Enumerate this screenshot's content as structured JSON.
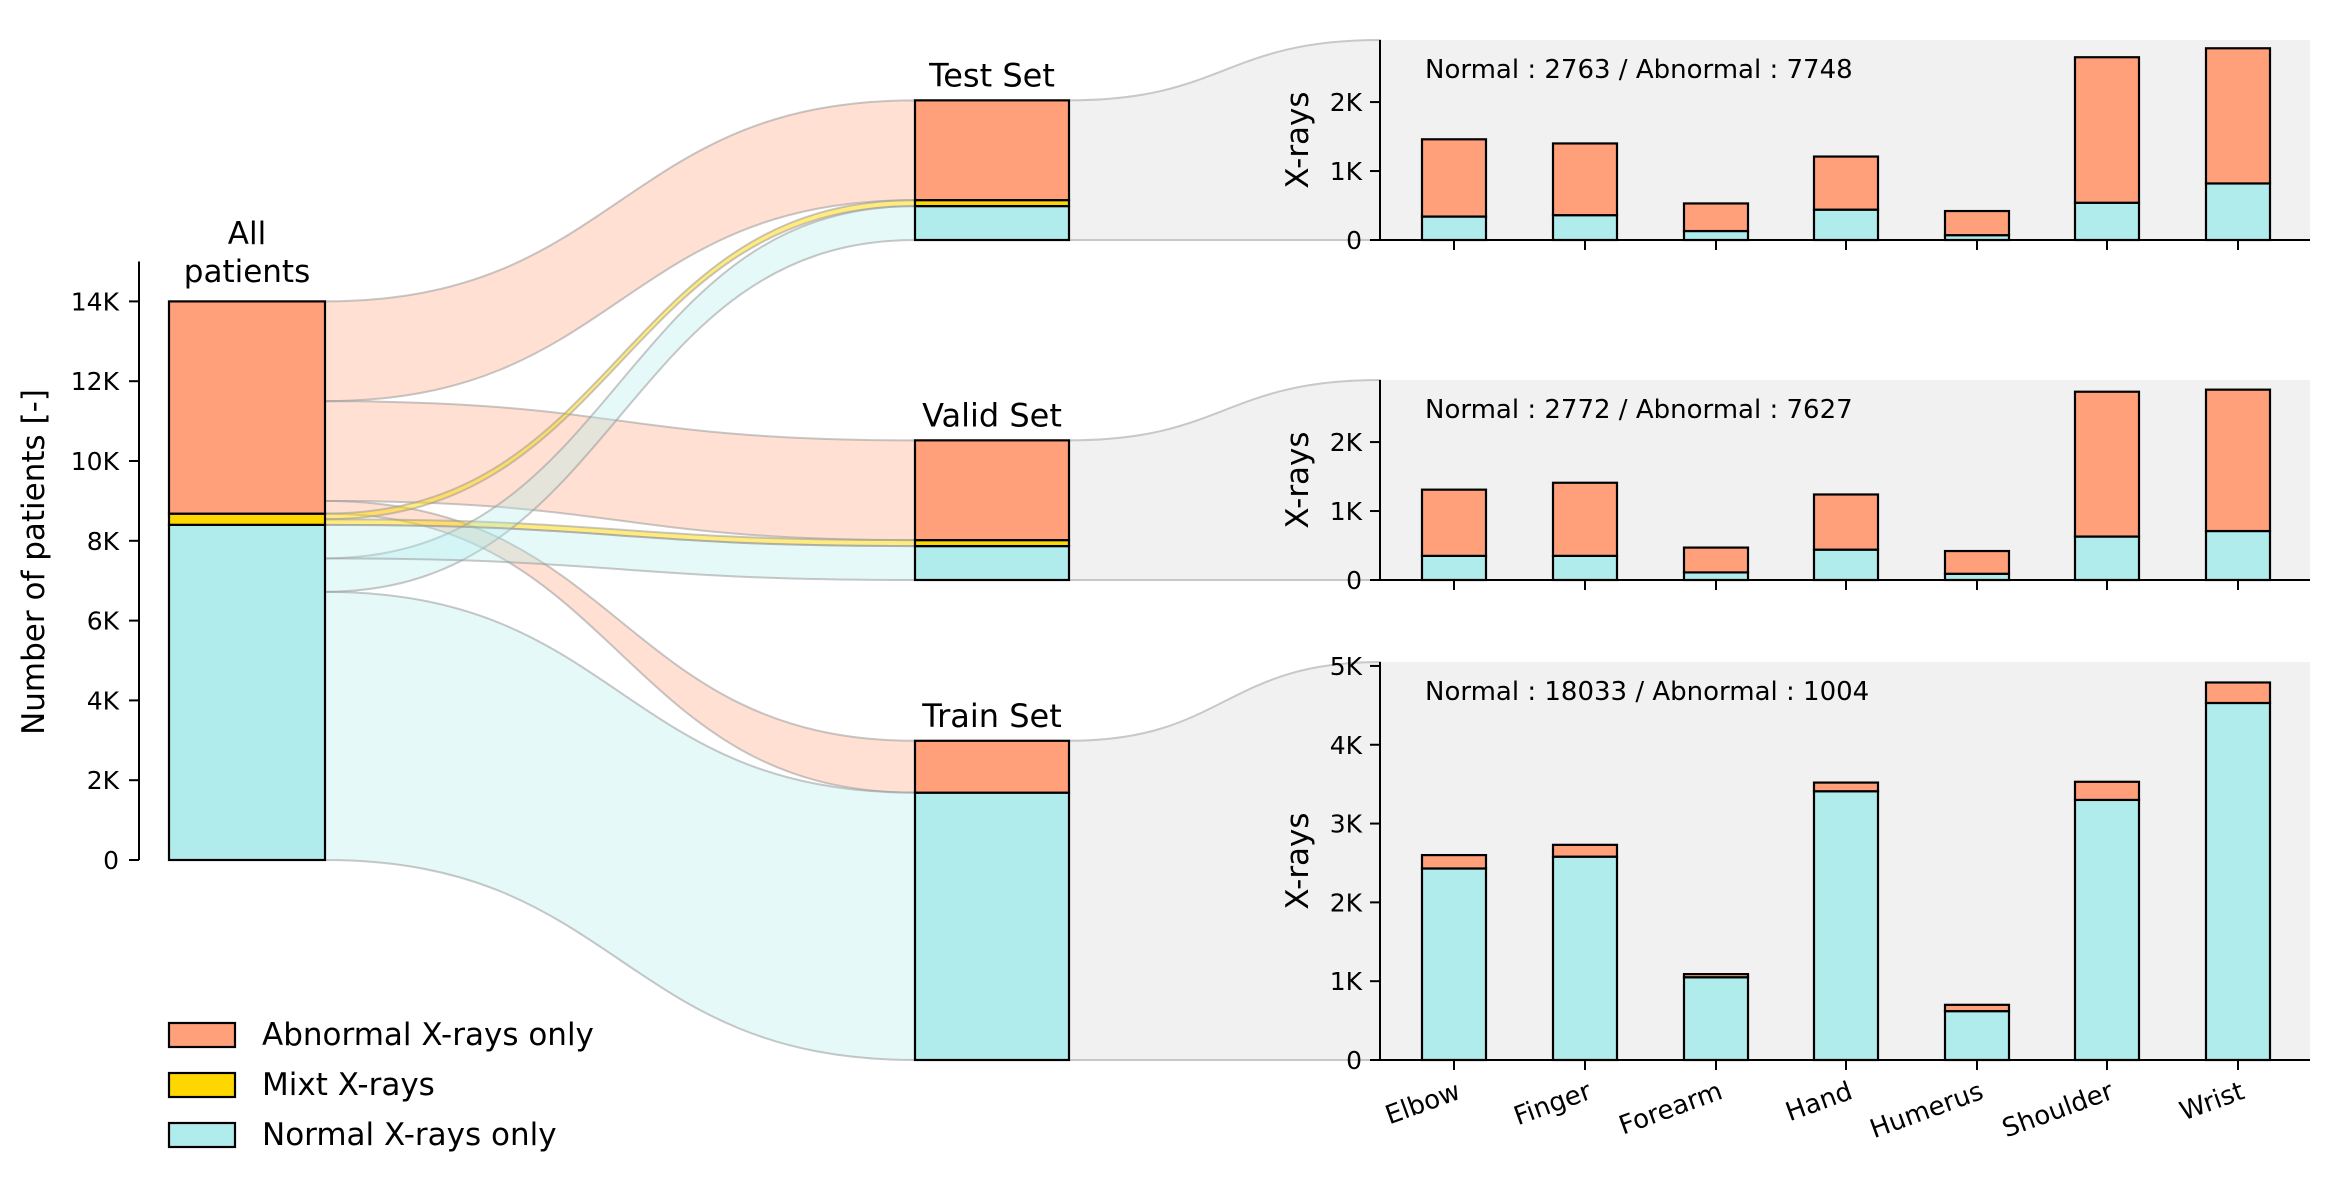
{
  "colors": {
    "abnormal": "#ffa07a",
    "mixt": "#ffd700",
    "normal": "#b0ecec",
    "panel_bg": "#f1f1f1",
    "flow_normal": "#b0ecec",
    "flow_abnormal": "#ffa07a",
    "flow_mixt": "#ffd700"
  },
  "chart_data": [
    {
      "type": "bar",
      "id": "all-patients",
      "title": "All\npatients",
      "ylabel": "Number of patients [-]",
      "ylim": [
        0,
        15000
      ],
      "yticks": [
        0,
        2000,
        4000,
        6000,
        8000,
        10000,
        12000,
        14000
      ],
      "ytick_labels": [
        "0",
        "2K",
        "4K",
        "6K",
        "8K",
        "10K",
        "12K",
        "14K"
      ],
      "stack": {
        "normal": 8400,
        "mixt": 280,
        "abnormal": 5320
      }
    },
    {
      "type": "bar",
      "id": "sets",
      "ylim": [
        0,
        15000
      ],
      "sets": [
        {
          "name": "Test Set",
          "normal": 850,
          "mixt": 150,
          "abnormal": 2500
        },
        {
          "name": "Valid Set",
          "normal": 850,
          "mixt": 150,
          "abnormal": 2500
        },
        {
          "name": "Train Set",
          "normal": 6700,
          "mixt": 0,
          "abnormal": 1300
        }
      ]
    },
    {
      "type": "bar",
      "id": "test-xrays",
      "annotation": "Normal : 2763 / Abnormal : 7748",
      "ylabel": "X-rays",
      "ylim": [
        0,
        2900
      ],
      "yticks": [
        0,
        1000,
        2000
      ],
      "ytick_labels": [
        "0",
        "1K",
        "2K"
      ],
      "categories": [
        "Elbow",
        "Finger",
        "Forearm",
        "Hand",
        "Humerus",
        "Shoulder",
        "Wrist"
      ],
      "series": [
        {
          "name": "Normal X-rays only",
          "values": [
            340,
            360,
            130,
            440,
            70,
            540,
            820
          ]
        },
        {
          "name": "Abnormal X-rays only",
          "values": [
            1120,
            1040,
            400,
            770,
            350,
            2110,
            1960
          ]
        }
      ]
    },
    {
      "type": "bar",
      "id": "valid-xrays",
      "annotation": "Normal : 2772 / Abnormal : 7627",
      "ylabel": "X-rays",
      "ylim": [
        0,
        2900
      ],
      "yticks": [
        0,
        1000,
        2000
      ],
      "ytick_labels": [
        "0",
        "1K",
        "2K"
      ],
      "categories": [
        "Elbow",
        "Finger",
        "Forearm",
        "Hand",
        "Humerus",
        "Shoulder",
        "Wrist"
      ],
      "series": [
        {
          "name": "Normal X-rays only",
          "values": [
            350,
            350,
            110,
            440,
            90,
            630,
            710
          ]
        },
        {
          "name": "Abnormal X-rays only",
          "values": [
            960,
            1060,
            360,
            800,
            330,
            2100,
            2050
          ]
        }
      ]
    },
    {
      "type": "bar",
      "id": "train-xrays",
      "annotation": "Normal : 18033 / Abnormal : 1004",
      "ylabel": "X-rays",
      "ylim": [
        0,
        5050
      ],
      "yticks": [
        0,
        1000,
        2000,
        3000,
        4000,
        5000
      ],
      "ytick_labels": [
        "0",
        "1K",
        "2K",
        "3K",
        "4K",
        "5K"
      ],
      "categories": [
        "Elbow",
        "Finger",
        "Forearm",
        "Hand",
        "Humerus",
        "Shoulder",
        "Wrist"
      ],
      "series": [
        {
          "name": "Normal X-rays only",
          "values": [
            2430,
            2580,
            1050,
            3410,
            620,
            3300,
            4530
          ]
        },
        {
          "name": "Abnormal X-rays only",
          "values": [
            170,
            150,
            40,
            110,
            80,
            230,
            260
          ]
        }
      ]
    }
  ],
  "legend": {
    "placement": "bottom-left",
    "entries": [
      {
        "label": "Abnormal X-rays only",
        "color_key": "abnormal"
      },
      {
        "label": "Mixt X-rays",
        "color_key": "mixt"
      },
      {
        "label": "Normal X-rays only",
        "color_key": "normal"
      }
    ]
  }
}
